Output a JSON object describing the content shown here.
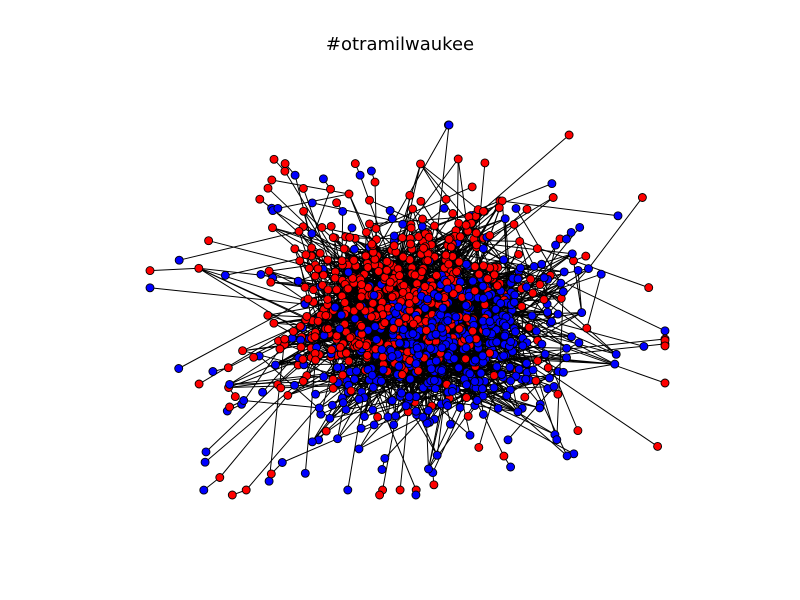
{
  "chart_data": {
    "type": "network",
    "title": "#otramilwaukee",
    "node_colors": {
      "group_a": "#ff0000",
      "group_b": "#0000ff"
    },
    "edge_color": "#000000",
    "node_outline": "#000000",
    "axes_visible": false,
    "grid": false,
    "legend": "none",
    "layout": "force-directed"
  }
}
